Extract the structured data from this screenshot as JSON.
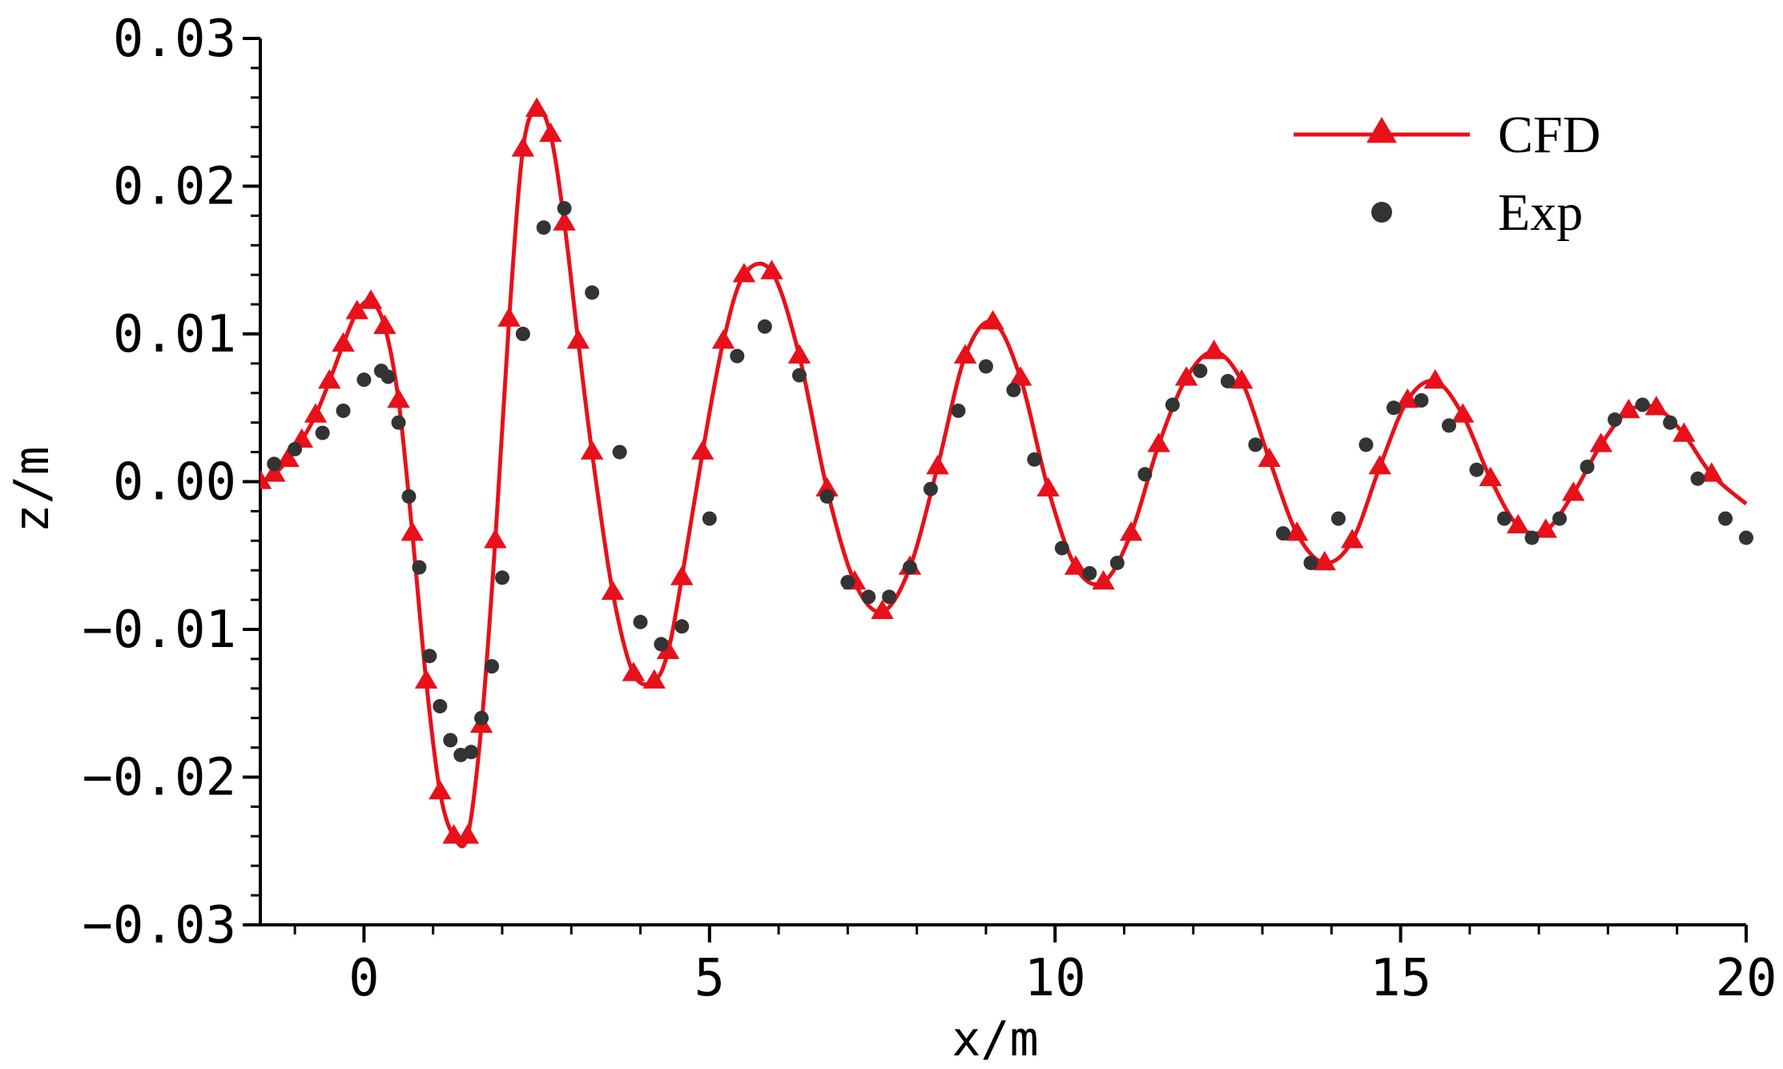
{
  "chart_data": {
    "type": "line",
    "xlabel": "x/m",
    "ylabel": "z/m",
    "xlim": [
      -1.5,
      20
    ],
    "ylim": [
      -0.03,
      0.03
    ],
    "xticks": [
      0,
      5,
      10,
      15,
      20
    ],
    "xtick_labels": [
      "0",
      "5",
      "10",
      "15",
      "20"
    ],
    "yticks": [
      -0.03,
      -0.02,
      -0.01,
      0.0,
      0.01,
      0.02,
      0.03
    ],
    "ytick_labels": [
      "−0.03",
      "−0.02",
      "−0.01",
      "0.00",
      "0.01",
      "0.02",
      "0.03"
    ],
    "grid": false,
    "legend_position": "top-right",
    "colors": {
      "cfd": "#e8101a",
      "exp": "#333333"
    },
    "series": [
      {
        "name": "CFD",
        "style": "line+triangle",
        "x": [
          -1.5,
          -1.3,
          -1.1,
          -0.9,
          -0.7,
          -0.5,
          -0.3,
          -0.1,
          0.1,
          0.3,
          0.5,
          0.7,
          0.9,
          1.1,
          1.3,
          1.5,
          1.7,
          1.9,
          2.1,
          2.3,
          2.5,
          2.7,
          2.9,
          3.1,
          3.3,
          3.6,
          3.9,
          4.2,
          4.4,
          4.6,
          4.9,
          5.2,
          5.5,
          5.9,
          6.3,
          6.7,
          7.1,
          7.5,
          7.9,
          8.3,
          8.7,
          9.1,
          9.5,
          9.9,
          10.3,
          10.7,
          11.1,
          11.5,
          11.9,
          12.3,
          12.7,
          13.1,
          13.5,
          13.9,
          14.3,
          14.7,
          15.1,
          15.5,
          15.9,
          16.3,
          16.7,
          17.1,
          17.5,
          17.9,
          18.3,
          18.7,
          19.1,
          19.5,
          20.0
        ],
        "y": [
          0.0,
          0.0005,
          0.0015,
          0.0028,
          0.0045,
          0.0068,
          0.0093,
          0.0115,
          0.0122,
          0.0105,
          0.0055,
          -0.0035,
          -0.0135,
          -0.021,
          -0.024,
          -0.024,
          -0.0165,
          -0.004,
          0.011,
          0.0225,
          0.0252,
          0.0235,
          0.0175,
          0.0095,
          0.002,
          -0.0075,
          -0.013,
          -0.0135,
          -0.0115,
          -0.0065,
          0.002,
          0.0095,
          0.014,
          0.0142,
          0.0085,
          -0.0005,
          -0.0068,
          -0.0088,
          -0.0058,
          0.001,
          0.0085,
          0.0108,
          0.007,
          -0.0005,
          -0.0058,
          -0.0068,
          -0.0035,
          0.0025,
          0.007,
          0.0088,
          0.0068,
          0.0015,
          -0.0035,
          -0.0055,
          -0.004,
          0.001,
          0.0055,
          0.0068,
          0.0045,
          0.0002,
          -0.003,
          -0.0033,
          -0.0008,
          0.0025,
          0.0048,
          0.005,
          0.0032,
          0.0005,
          -0.0015
        ]
      },
      {
        "name": "Exp",
        "style": "dot",
        "x": [
          -1.3,
          -1.0,
          -0.6,
          -0.3,
          0.0,
          0.25,
          0.35,
          0.5,
          0.65,
          0.8,
          0.95,
          1.1,
          1.25,
          1.4,
          1.55,
          1.7,
          1.85,
          2.0,
          2.3,
          2.6,
          2.9,
          3.3,
          3.7,
          4.0,
          4.3,
          4.6,
          5.0,
          5.4,
          5.8,
          6.3,
          6.7,
          7.0,
          7.3,
          7.6,
          7.9,
          8.2,
          8.6,
          9.0,
          9.4,
          9.7,
          10.1,
          10.5,
          10.9,
          11.3,
          11.7,
          12.1,
          12.5,
          12.9,
          13.3,
          13.7,
          14.1,
          14.5,
          14.9,
          15.3,
          15.7,
          16.1,
          16.5,
          16.9,
          17.3,
          17.7,
          18.1,
          18.5,
          18.9,
          19.3,
          19.7,
          20.0
        ],
        "y": [
          0.0012,
          0.0022,
          0.0033,
          0.0048,
          0.0069,
          0.0075,
          0.0071,
          0.004,
          -0.001,
          -0.0058,
          -0.0118,
          -0.0152,
          -0.0175,
          -0.0185,
          -0.0183,
          -0.016,
          -0.0125,
          -0.0065,
          0.01,
          0.0172,
          0.0185,
          0.0128,
          0.002,
          -0.0095,
          -0.011,
          -0.0098,
          -0.0025,
          0.0085,
          0.0105,
          0.0072,
          -0.001,
          -0.0068,
          -0.0078,
          -0.0078,
          -0.0058,
          -0.0005,
          0.0048,
          0.0078,
          0.0062,
          0.0015,
          -0.0045,
          -0.0062,
          -0.0055,
          0.0005,
          0.0052,
          0.0075,
          0.0068,
          0.0025,
          -0.0035,
          -0.0055,
          -0.0025,
          0.0025,
          0.005,
          0.0055,
          0.0038,
          0.0008,
          -0.0025,
          -0.0038,
          -0.0025,
          0.001,
          0.0042,
          0.0052,
          0.004,
          0.0002,
          -0.0025,
          -0.0038
        ]
      }
    ]
  }
}
